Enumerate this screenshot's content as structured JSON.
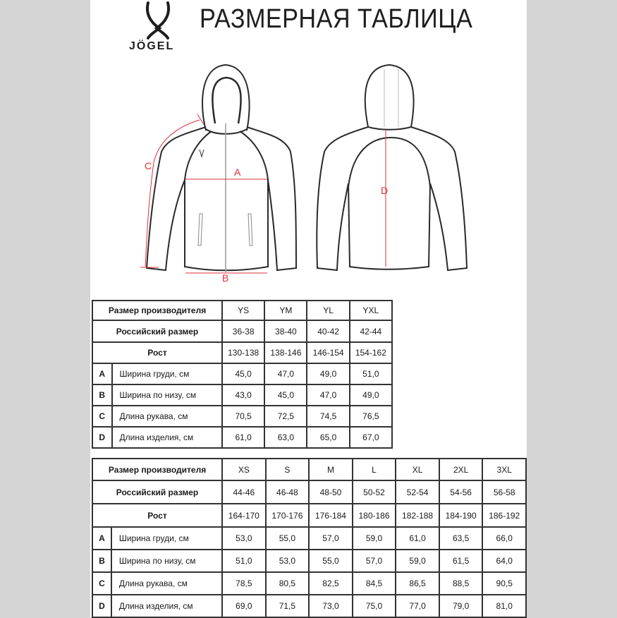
{
  "header": {
    "title": "РАЗМЕРНАЯ ТАБЛИЦА",
    "brand": "JÖGEL"
  },
  "colors": {
    "measure": "#e0303a",
    "outline": "#2a2a2a",
    "background": "#d5d5d5"
  },
  "measurements": {
    "a": "A",
    "b": "B",
    "c": "C",
    "d": "D"
  },
  "tables": [
    {
      "header_rows": [
        {
          "label": "Размер производителя",
          "values": [
            "YS",
            "YM",
            "YL",
            "YXL"
          ]
        },
        {
          "label": "Российский размер",
          "values": [
            "36-38",
            "38-40",
            "40-42",
            "42-44"
          ]
        },
        {
          "label": "Рост",
          "values": [
            "130-138",
            "138-146",
            "146-154",
            "154-162"
          ]
        }
      ],
      "rows": [
        {
          "letter": "A",
          "label": "Ширина груди, см",
          "values": [
            "45,0",
            "47,0",
            "49,0",
            "51,0"
          ]
        },
        {
          "letter": "B",
          "label": "Ширина по низу, см",
          "values": [
            "43,0",
            "45,0",
            "47,0",
            "49,0"
          ]
        },
        {
          "letter": "C",
          "label": "Длина рукава, см",
          "values": [
            "70,5",
            "72,5",
            "74,5",
            "76,5"
          ]
        },
        {
          "letter": "D",
          "label": "Длина изделия, см",
          "values": [
            "61,0",
            "63,0",
            "65,0",
            "67,0"
          ]
        }
      ]
    },
    {
      "header_rows": [
        {
          "label": "Размер производителя",
          "values": [
            "XS",
            "S",
            "M",
            "L",
            "XL",
            "2XL",
            "3XL"
          ]
        },
        {
          "label": "Российский размер",
          "values": [
            "44-46",
            "46-48",
            "48-50",
            "50-52",
            "52-54",
            "54-56",
            "56-58"
          ]
        },
        {
          "label": "Рост",
          "values": [
            "164-170",
            "170-176",
            "176-184",
            "180-186",
            "182-188",
            "184-190",
            "186-192"
          ]
        }
      ],
      "rows": [
        {
          "letter": "A",
          "label": "Ширина груди, см",
          "values": [
            "53,0",
            "55,0",
            "57,0",
            "59,0",
            "61,0",
            "63,5",
            "66,0"
          ]
        },
        {
          "letter": "B",
          "label": "Ширина по низу, см",
          "values": [
            "51,0",
            "53,0",
            "55,0",
            "57,0",
            "59,0",
            "61,5",
            "64,0"
          ]
        },
        {
          "letter": "C",
          "label": "Длина рукава, см",
          "values": [
            "78,5",
            "80,5",
            "82,5",
            "84,5",
            "86,5",
            "88,5",
            "90,5"
          ]
        },
        {
          "letter": "D",
          "label": "Длина изделия, см",
          "values": [
            "69,0",
            "71,5",
            "73,0",
            "75,0",
            "77,0",
            "79,0",
            "81,0"
          ]
        }
      ]
    }
  ]
}
